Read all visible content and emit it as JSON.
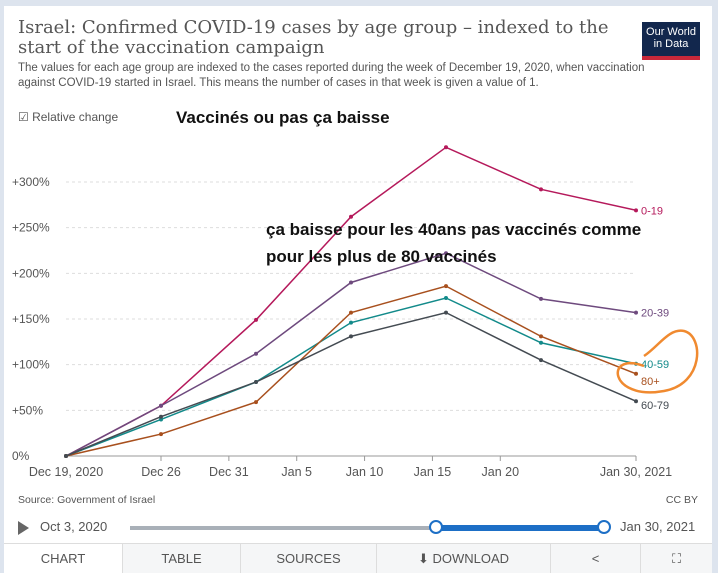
{
  "header": {
    "title": "Israel: Confirmed COVID-19 cases by age group – indexed to the start of the vaccination campaign",
    "subtitle": "The values for each age group are indexed to the cases reported during the week of December 19, 2020, when vaccination against COVID-19 started in Israel. This means the number of cases in that week is given a value of 1.",
    "logo": "Our World in Data"
  },
  "controls": {
    "relative_change": "☑ Relative change"
  },
  "annotations": {
    "top": "Vaccinés ou pas ça baisse",
    "middle_1": "ça baisse pour les 40ans pas vaccinés comme",
    "middle_2": "pour les plus de 80 vaccinés"
  },
  "footer": {
    "source": "Source: Government of Israel",
    "license": "CC BY"
  },
  "timeline": {
    "start": "Oct 3, 2020",
    "end": "Jan 30, 2021",
    "selected_start_fraction": 0.65,
    "selected_end_fraction": 1.0
  },
  "tabs": [
    "CHART",
    "TABLE",
    "SOURCES",
    "⬇ DOWNLOAD",
    "<",
    "⛶"
  ],
  "chart_data": {
    "type": "line",
    "title": "Israel: Confirmed COVID-19 cases by age group – indexed to the start of the vaccination campaign",
    "x": [
      "Dec 19, 2020",
      "Dec 26",
      "Jan 2",
      "Jan 9",
      "Jan 16",
      "Jan 23",
      "Jan 30, 2021"
    ],
    "x_ticks": [
      "Dec 19, 2020",
      "Dec 26",
      "Dec 31",
      "Jan 5",
      "Jan 10",
      "Jan 15",
      "Jan 20",
      "Jan 30, 2021"
    ],
    "y_ticks": [
      "0%",
      "+50%",
      "+100%",
      "+150%",
      "+200%",
      "+250%",
      "+300%"
    ],
    "ylim": [
      0,
      300
    ],
    "series": [
      {
        "name": "0-19",
        "color": "#b5195b",
        "values": [
          0,
          55,
          149,
          262,
          338,
          292,
          269
        ]
      },
      {
        "name": "20-39",
        "color": "#6e4a7e",
        "values": [
          0,
          55,
          112,
          190,
          222,
          172,
          157
        ]
      },
      {
        "name": "40-59",
        "color": "#128a8a",
        "values": [
          0,
          40,
          81,
          146,
          173,
          124,
          101
        ]
      },
      {
        "name": "80+",
        "color": "#a8501e",
        "values": [
          0,
          24,
          59,
          157,
          186,
          131,
          90
        ]
      },
      {
        "name": "60-79",
        "color": "#444b52",
        "values": [
          0,
          43,
          81,
          131,
          157,
          105,
          60
        ]
      }
    ]
  }
}
